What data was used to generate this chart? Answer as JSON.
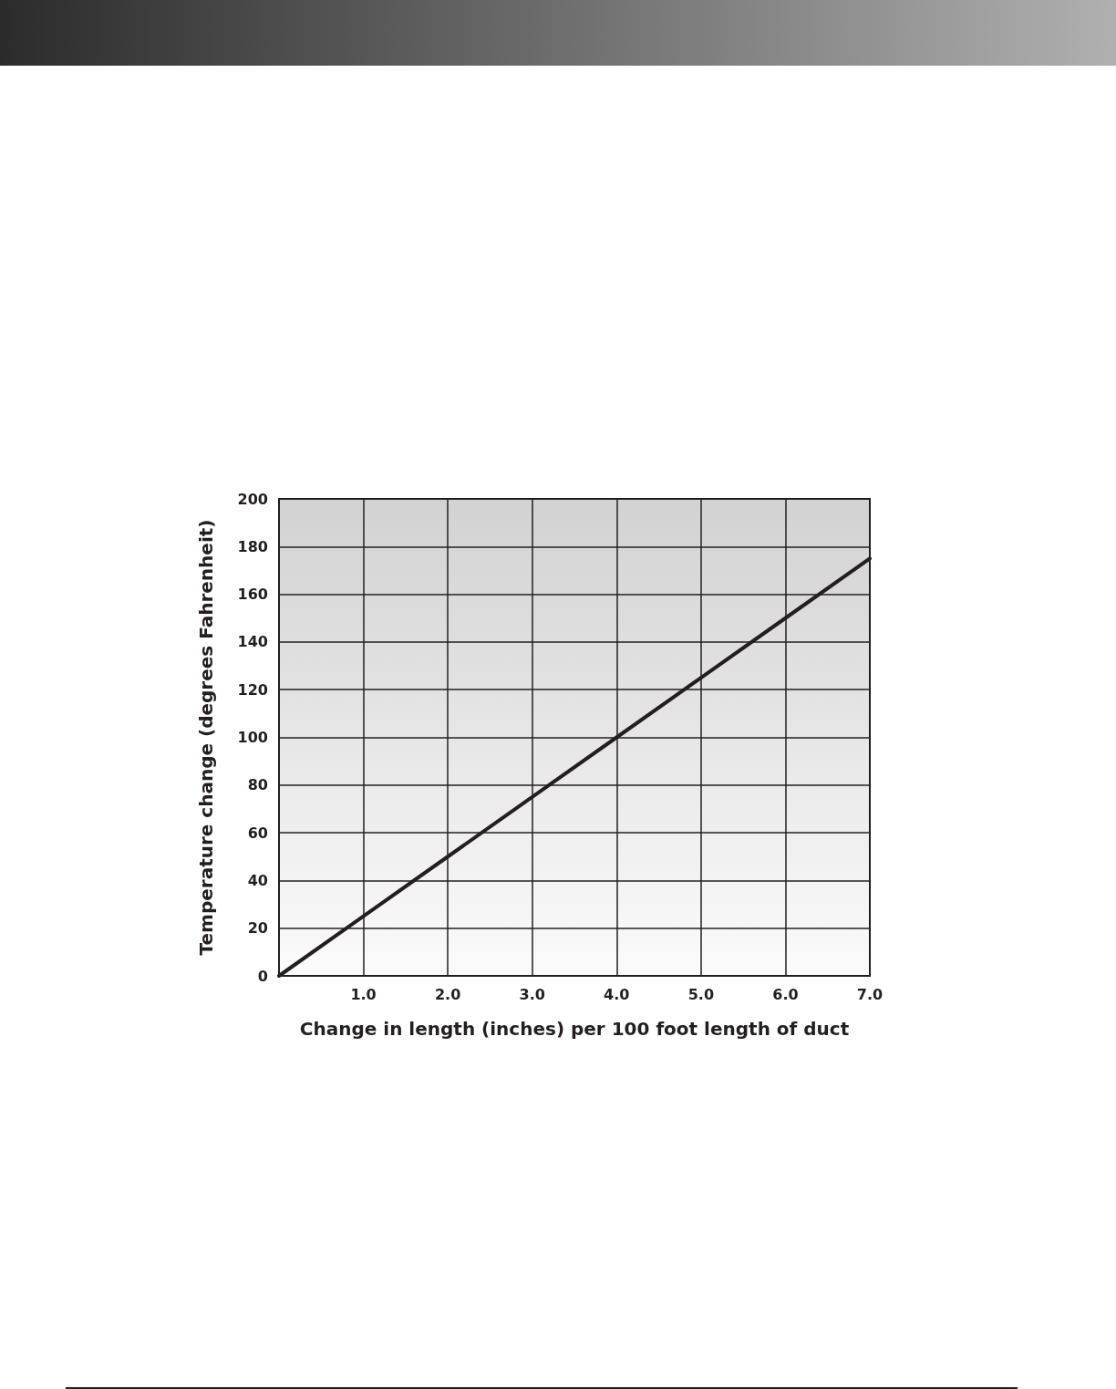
{
  "chart_data": {
    "type": "line",
    "xlabel": "Change in length (inches) per 100 foot length of duct",
    "ylabel": "Temperature change (degrees Fahrenheit)",
    "x": [
      0,
      1,
      2,
      3,
      4,
      5,
      6,
      7
    ],
    "series": [
      {
        "color": "#231f20",
        "values": [
          0,
          25,
          50,
          75,
          100,
          125,
          150,
          175
        ]
      }
    ],
    "xlim": [
      0,
      7
    ],
    "xticks": [
      {
        "value": 1,
        "label": "1.0"
      },
      {
        "value": 2,
        "label": "2.0"
      },
      {
        "value": 3,
        "label": "3.0"
      },
      {
        "value": 4,
        "label": "4.0"
      },
      {
        "value": 5,
        "label": "5.0"
      },
      {
        "value": 6,
        "label": "6.0"
      },
      {
        "value": 7,
        "label": "7.0"
      }
    ],
    "ylim": [
      0,
      200
    ],
    "yticks": [
      0,
      20,
      40,
      60,
      80,
      100,
      120,
      140,
      160,
      180,
      200
    ],
    "grid": true,
    "marker": "none",
    "line_style": "solid"
  }
}
